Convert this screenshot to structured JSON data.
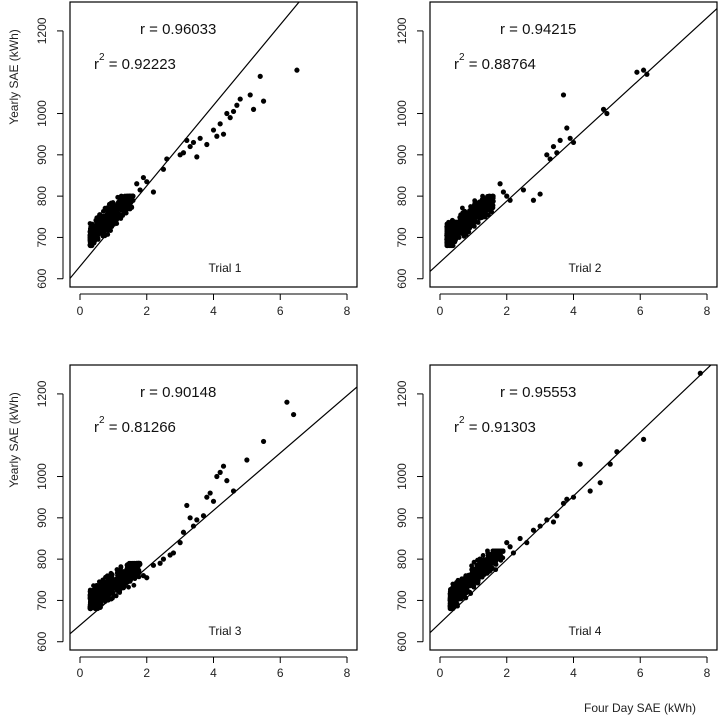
{
  "chart_data": [
    {
      "type": "scatter",
      "panel_label": "Trial 1",
      "r_label": "r = 0.96033",
      "r2_prefix": "r",
      "r2_superscript": "2",
      "r2_value": " = 0.92223",
      "xlabel": "",
      "ylabel": "Yearly SAE (kWh)",
      "xlim": [
        -0.3,
        8.3
      ],
      "ylim": [
        580,
        1270
      ],
      "xticks": [
        0,
        2,
        4,
        6,
        8
      ],
      "yticks": [
        600,
        700,
        800,
        900,
        1000,
        1200
      ],
      "fit_line": {
        "intercept": 630,
        "slope": 97.5
      },
      "cluster": {
        "x_min": 0.3,
        "x_max": 1.6,
        "y_min": 680,
        "y_max": 800,
        "slope": 80,
        "count": 500
      },
      "outliers": [
        [
          1.7,
          830
        ],
        [
          1.8,
          815
        ],
        [
          1.9,
          845
        ],
        [
          2.0,
          835
        ],
        [
          2.2,
          810
        ],
        [
          2.5,
          865
        ],
        [
          2.6,
          890
        ],
        [
          3.0,
          900
        ],
        [
          3.1,
          905
        ],
        [
          3.2,
          935
        ],
        [
          3.3,
          920
        ],
        [
          3.4,
          930
        ],
        [
          3.5,
          895
        ],
        [
          3.6,
          940
        ],
        [
          3.8,
          925
        ],
        [
          4.0,
          960
        ],
        [
          4.1,
          945
        ],
        [
          4.2,
          975
        ],
        [
          4.3,
          950
        ],
        [
          4.4,
          1000
        ],
        [
          4.5,
          990
        ],
        [
          4.6,
          1005
        ],
        [
          4.7,
          1020
        ],
        [
          4.8,
          1035
        ],
        [
          5.1,
          1045
        ],
        [
          5.2,
          1010
        ],
        [
          5.4,
          1090
        ],
        [
          5.5,
          1030
        ],
        [
          6.5,
          1105
        ]
      ]
    },
    {
      "type": "scatter",
      "panel_label": "Trial 2",
      "r_label": "r = 0.94215",
      "r2_prefix": "r",
      "r2_superscript": "2",
      "r2_value": " = 0.88764",
      "xlabel": "",
      "ylabel": "",
      "xlim": [
        -0.3,
        8.3
      ],
      "ylim": [
        580,
        1270
      ],
      "xticks": [
        0,
        2,
        4,
        6,
        8
      ],
      "yticks": [
        600,
        700,
        800,
        900,
        1000,
        1200
      ],
      "fit_line": {
        "intercept": 640,
        "slope": 74
      },
      "cluster": {
        "x_min": 0.2,
        "x_max": 1.6,
        "y_min": 680,
        "y_max": 800,
        "slope": 65,
        "count": 500
      },
      "outliers": [
        [
          1.8,
          830
        ],
        [
          1.9,
          810
        ],
        [
          2.0,
          800
        ],
        [
          2.1,
          790
        ],
        [
          2.5,
          815
        ],
        [
          2.8,
          790
        ],
        [
          3.0,
          805
        ],
        [
          3.2,
          900
        ],
        [
          3.3,
          890
        ],
        [
          3.4,
          920
        ],
        [
          3.5,
          905
        ],
        [
          3.6,
          935
        ],
        [
          3.7,
          1045
        ],
        [
          3.8,
          965
        ],
        [
          3.9,
          940
        ],
        [
          4.0,
          930
        ],
        [
          4.9,
          1010
        ],
        [
          5.0,
          1000
        ],
        [
          5.9,
          1100
        ],
        [
          6.1,
          1105
        ],
        [
          6.2,
          1095
        ]
      ]
    },
    {
      "type": "scatter",
      "panel_label": "Trial 3",
      "r_label": "r = 0.90148",
      "r2_prefix": "r",
      "r2_superscript": "2",
      "r2_value": " = 0.81266",
      "xlabel": "",
      "ylabel": "Yearly SAE (kWh)",
      "xlim": [
        -0.3,
        8.3
      ],
      "ylim": [
        580,
        1270
      ],
      "xticks": [
        0,
        2,
        4,
        6,
        8
      ],
      "yticks": [
        600,
        700,
        800,
        900,
        1000,
        1200
      ],
      "fit_line": {
        "intercept": 640,
        "slope": 69.5
      },
      "cluster": {
        "x_min": 0.3,
        "x_max": 1.8,
        "y_min": 680,
        "y_max": 790,
        "slope": 55,
        "count": 550
      },
      "outliers": [
        [
          1.9,
          760
        ],
        [
          2.0,
          755
        ],
        [
          2.2,
          785
        ],
        [
          2.4,
          790
        ],
        [
          2.5,
          800
        ],
        [
          2.7,
          810
        ],
        [
          2.8,
          815
        ],
        [
          3.0,
          840
        ],
        [
          3.1,
          865
        ],
        [
          3.2,
          930
        ],
        [
          3.3,
          900
        ],
        [
          3.4,
          880
        ],
        [
          3.5,
          895
        ],
        [
          3.7,
          905
        ],
        [
          3.8,
          950
        ],
        [
          3.9,
          960
        ],
        [
          4.0,
          940
        ],
        [
          4.1,
          1000
        ],
        [
          4.2,
          1010
        ],
        [
          4.3,
          1025
        ],
        [
          4.4,
          990
        ],
        [
          4.6,
          965
        ],
        [
          5.0,
          1040
        ],
        [
          5.5,
          1085
        ],
        [
          6.2,
          1180
        ],
        [
          6.4,
          1150
        ]
      ]
    },
    {
      "type": "scatter",
      "panel_label": "Trial 4",
      "r_label": "r = 0.95553",
      "r2_prefix": "r",
      "r2_superscript": "2",
      "r2_value": " = 0.91303",
      "xlabel": "Four Day SAE (kWh)",
      "ylabel": "",
      "xlim": [
        -0.3,
        8.3
      ],
      "ylim": [
        580,
        1270
      ],
      "xticks": [
        0,
        2,
        4,
        6,
        8
      ],
      "yticks": [
        600,
        700,
        800,
        900,
        1000,
        1200
      ],
      "fit_line": {
        "intercept": 645,
        "slope": 77
      },
      "cluster": {
        "x_min": 0.3,
        "x_max": 1.9,
        "y_min": 680,
        "y_max": 820,
        "slope": 80,
        "count": 550
      },
      "outliers": [
        [
          2.0,
          840
        ],
        [
          2.1,
          830
        ],
        [
          2.2,
          815
        ],
        [
          2.4,
          850
        ],
        [
          2.6,
          840
        ],
        [
          2.8,
          870
        ],
        [
          3.0,
          880
        ],
        [
          3.2,
          895
        ],
        [
          3.4,
          890
        ],
        [
          3.5,
          905
        ],
        [
          3.7,
          935
        ],
        [
          3.8,
          945
        ],
        [
          4.0,
          950
        ],
        [
          4.2,
          1030
        ],
        [
          4.5,
          965
        ],
        [
          4.8,
          985
        ],
        [
          5.1,
          1030
        ],
        [
          5.3,
          1060
        ],
        [
          6.1,
          1090
        ],
        [
          7.8,
          1250
        ]
      ]
    }
  ]
}
